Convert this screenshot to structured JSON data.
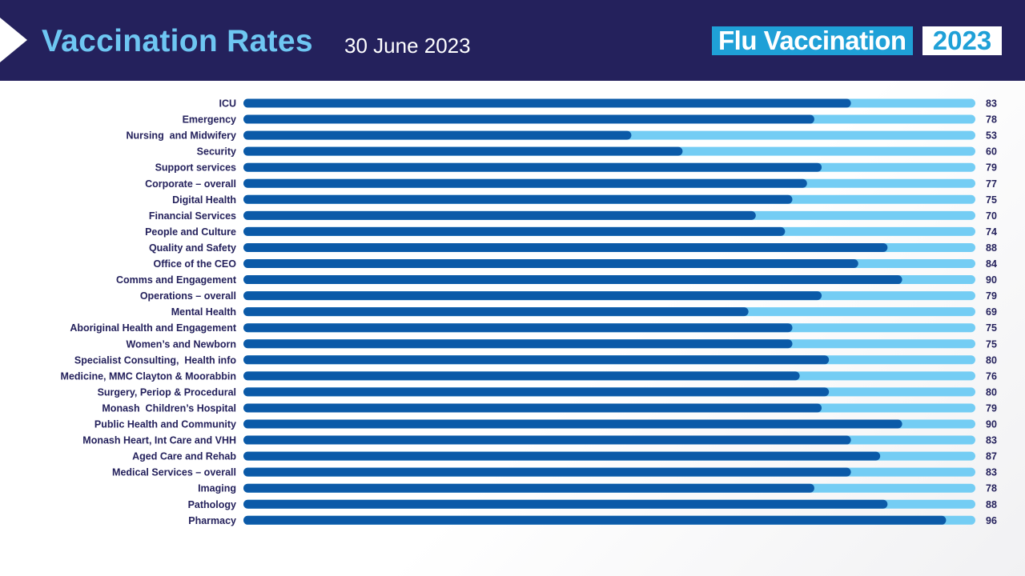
{
  "header": {
    "title": "Vaccination Rates",
    "date": "30 June 2023",
    "logo_text": "Flu Vaccination",
    "logo_year": "2023"
  },
  "colors": {
    "header_bg": "#24215c",
    "title": "#6ec6f2",
    "bar_fill": "#0b5aa8",
    "bar_track": "#74cdf4",
    "label_text": "#24215c",
    "logo_bg": "#1fa0d7"
  },
  "chart_data": {
    "type": "bar",
    "orientation": "horizontal",
    "title": "",
    "xlabel": "",
    "ylabel": "",
    "xlim": [
      0,
      100
    ],
    "grid": false,
    "categories": [
      "ICU",
      "Emergency",
      "Nursing  and Midwifery",
      "Security",
      "Support services",
      "Corporate – overall",
      "Digital Health",
      "Financial Services",
      "People and Culture",
      "Quality and Safety",
      "Office of the CEO",
      "Comms and Engagement",
      "Operations – overall",
      "Mental Health",
      "Aboriginal Health and Engagement",
      "Women’s and Newborn",
      "Specialist Consulting,  Health info",
      "Medicine, MMC Clayton & Moorabbin",
      "Surgery, Periop & Procedural",
      "Monash  Children’s Hospital",
      "Public Health and Community",
      "Monash Heart, Int Care and VHH",
      "Aged Care and Rehab",
      "Medical Services – overall",
      "Imaging",
      "Pathology",
      "Pharmacy"
    ],
    "values": [
      83,
      78,
      53,
      60,
      79,
      77,
      75,
      70,
      74,
      88,
      84,
      90,
      79,
      69,
      75,
      75,
      80,
      76,
      80,
      79,
      90,
      83,
      87,
      83,
      78,
      88,
      96
    ]
  }
}
